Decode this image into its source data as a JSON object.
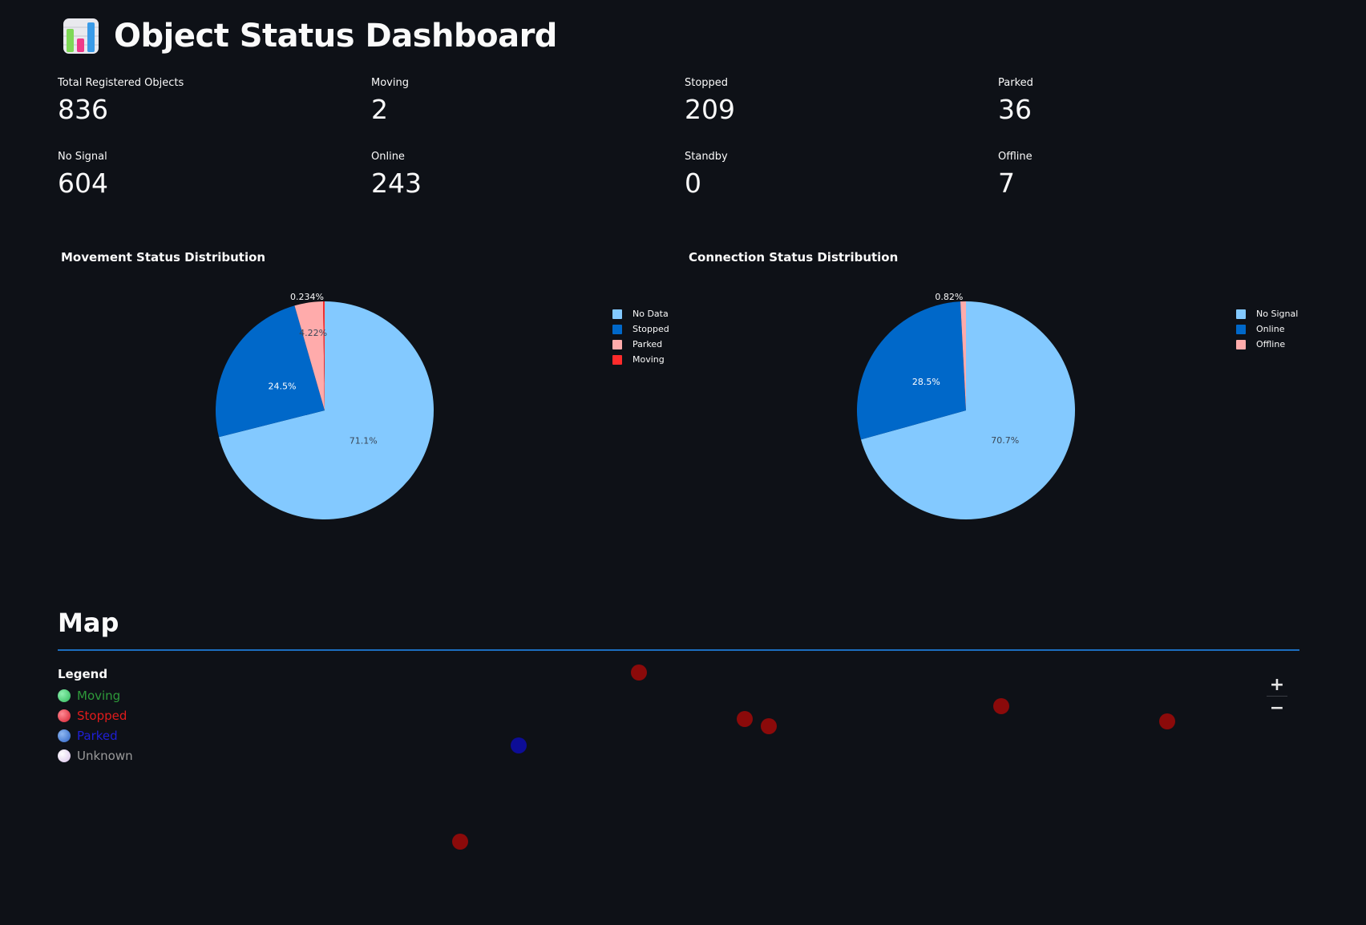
{
  "header": {
    "title": "Object Status Dashboard",
    "icon": "bar-chart-emoji-icon"
  },
  "metrics": [
    {
      "label": "Total Registered Objects",
      "value": "836"
    },
    {
      "label": "Moving",
      "value": "2"
    },
    {
      "label": "Stopped",
      "value": "209"
    },
    {
      "label": "Parked",
      "value": "36"
    },
    {
      "label": "No Signal",
      "value": "604"
    },
    {
      "label": "Online",
      "value": "243"
    },
    {
      "label": "Standby",
      "value": "0"
    },
    {
      "label": "Offline",
      "value": "7"
    }
  ],
  "chart_data": [
    {
      "type": "pie",
      "title": "Movement Status Distribution",
      "categories": [
        "No Data",
        "Stopped",
        "Parked",
        "Moving"
      ],
      "values": [
        71.1,
        24.5,
        4.22,
        0.234
      ],
      "labels": [
        "71.1%",
        "24.5%",
        "4.22%",
        "0.234%"
      ],
      "colors": [
        "#83c9ff",
        "#0068c9",
        "#ffabab",
        "#ff2b2b"
      ],
      "legend_position": "top-right"
    },
    {
      "type": "pie",
      "title": "Connection Status Distribution",
      "categories": [
        "No Signal",
        "Online",
        "Offline"
      ],
      "values": [
        70.7,
        28.5,
        0.82
      ],
      "labels": [
        "70.7%",
        "28.5%",
        "0.82%"
      ],
      "colors": [
        "#83c9ff",
        "#0068c9",
        "#ffabab"
      ],
      "legend_position": "top-right"
    }
  ],
  "map": {
    "heading": "Map",
    "legend_title": "Legend",
    "legend": [
      {
        "label": "Moving",
        "color": "#2e9a3a",
        "dot_color": "#3ccf6e"
      },
      {
        "label": "Stopped",
        "color": "#e01b1b",
        "dot_color": "#e8323f"
      },
      {
        "label": "Parked",
        "color": "#1f1fd6",
        "dot_color": "#3a78d8"
      },
      {
        "label": "Unknown",
        "color": "#9a9a9a",
        "dot_color": "#e7d2f2"
      }
    ],
    "marker_colors": {
      "stopped": "#8b0a0a",
      "parked": "#0d0d96"
    },
    "zoom_in_label": "+",
    "zoom_out_label": "−"
  }
}
